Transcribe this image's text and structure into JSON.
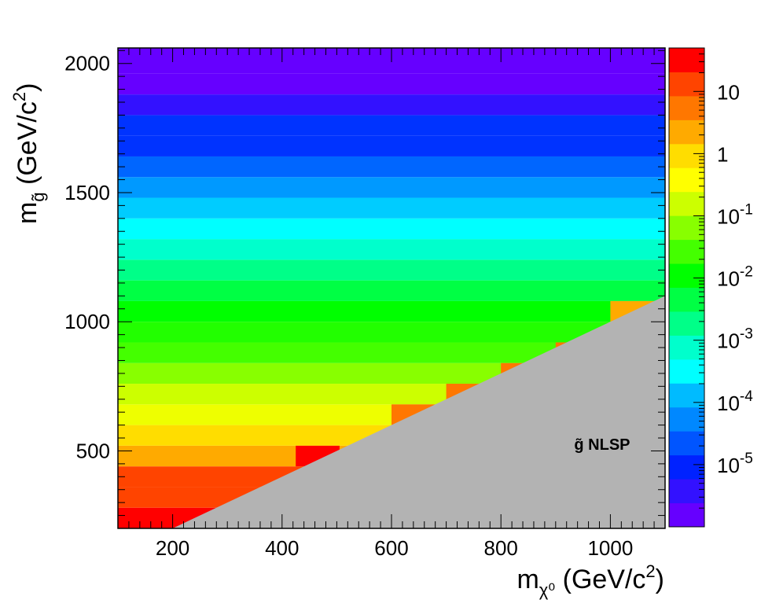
{
  "chart_data": {
    "type": "heatmap",
    "title": "",
    "x_axis": {
      "label_main": "m",
      "label_sub": "χ⁰",
      "label_unit": " (GeV/c",
      "label_exp": "2",
      "label_close": ")",
      "range": [
        100,
        1100
      ],
      "ticks": [
        200,
        400,
        600,
        800,
        1000
      ],
      "tick_labels": [
        "200",
        "400",
        "600",
        "800",
        "1000"
      ]
    },
    "y_axis": {
      "label_main": "m",
      "label_sub": "g̃",
      "label_unit": " (GeV/c",
      "label_exp": "2",
      "label_close": ")",
      "range": [
        200,
        2060
      ],
      "ticks": [
        500,
        1000,
        1500,
        2000
      ],
      "tick_labels": [
        "500",
        "1000",
        "1500",
        "2000"
      ]
    },
    "z_axis": {
      "scale": "log",
      "range": [
        1e-06,
        50
      ],
      "ticks": [
        {
          "base": "10",
          "exp": "-5"
        },
        {
          "base": "10",
          "exp": "-4"
        },
        {
          "base": "10",
          "exp": "-3"
        },
        {
          "base": "10",
          "exp": "-2"
        },
        {
          "base": "10",
          "exp": "-1"
        },
        {
          "base": "1",
          "exp": ""
        },
        {
          "base": "10",
          "exp": ""
        }
      ],
      "tick_values": [
        1e-05,
        0.0001,
        0.001,
        0.01,
        0.1,
        1,
        10
      ]
    },
    "palette": [
      "#6600ff",
      "#3311ff",
      "#0022ff",
      "#0055ff",
      "#0088ff",
      "#00bbff",
      "#00ffff",
      "#00ffcc",
      "#00ff88",
      "#00ff44",
      "#00ff00",
      "#44ff00",
      "#88ff00",
      "#ccff00",
      "#ffff00",
      "#ffdd00",
      "#ffaa00",
      "#ff7700",
      "#ff4400",
      "#ff0000"
    ],
    "gluino_bands": [
      {
        "m_low": 200,
        "m_high": 280,
        "color": "#ff0000"
      },
      {
        "m_low": 280,
        "m_high": 360,
        "color": "#ff4400"
      },
      {
        "m_low": 360,
        "m_high": 440,
        "color": "#ff4400"
      },
      {
        "m_low": 440,
        "m_high": 520,
        "color": "#ffaa00"
      },
      {
        "m_low": 520,
        "m_high": 600,
        "color": "#ffdd00"
      },
      {
        "m_low": 600,
        "m_high": 680,
        "color": "#eeff00"
      },
      {
        "m_low": 680,
        "m_high": 760,
        "color": "#ccff00"
      },
      {
        "m_low": 760,
        "m_high": 840,
        "color": "#88ff00"
      },
      {
        "m_low": 840,
        "m_high": 920,
        "color": "#44ff00"
      },
      {
        "m_low": 920,
        "m_high": 1000,
        "color": "#22ff00"
      },
      {
        "m_low": 1000,
        "m_high": 1080,
        "color": "#00ff00"
      },
      {
        "m_low": 1080,
        "m_high": 1160,
        "color": "#00ff44"
      },
      {
        "m_low": 1160,
        "m_high": 1240,
        "color": "#00ff88"
      },
      {
        "m_low": 1240,
        "m_high": 1320,
        "color": "#00ffcc"
      },
      {
        "m_low": 1320,
        "m_high": 1400,
        "color": "#00ffff"
      },
      {
        "m_low": 1400,
        "m_high": 1480,
        "color": "#00ccff"
      },
      {
        "m_low": 1480,
        "m_high": 1560,
        "color": "#0099ff"
      },
      {
        "m_low": 1560,
        "m_high": 1640,
        "color": "#0066ff"
      },
      {
        "m_low": 1640,
        "m_high": 1720,
        "color": "#0033ff"
      },
      {
        "m_low": 1720,
        "m_high": 1800,
        "color": "#0033ff"
      },
      {
        "m_low": 1800,
        "m_high": 1880,
        "color": "#3311ff"
      },
      {
        "m_low": 1880,
        "m_high": 1960,
        "color": "#6600ff"
      },
      {
        "m_low": 1960,
        "m_high": 2060,
        "color": "#6600ff"
      }
    ],
    "edge_cells": [
      {
        "x1": 425,
        "x2": 505,
        "y1": 440,
        "y2": 520,
        "color": "#ff0000"
      },
      {
        "x1": 600,
        "x2": 700,
        "y1": 600,
        "y2": 680,
        "color": "#ff7700"
      },
      {
        "x1": 700,
        "x2": 800,
        "y1": 680,
        "y2": 760,
        "color": "#ff7700"
      },
      {
        "x1": 800,
        "x2": 900,
        "y1": 760,
        "y2": 840,
        "color": "#ff7700"
      },
      {
        "x1": 900,
        "x2": 1000,
        "y1": 840,
        "y2": 920,
        "color": "#ff7700"
      },
      {
        "x1": 1000,
        "x2": 1100,
        "y1": 1000,
        "y2": 1080,
        "color": "#ffaa00"
      }
    ],
    "excluded_region": {
      "vertices": [
        [
          200,
          200
        ],
        [
          1100,
          1100
        ],
        [
          1100,
          200
        ]
      ],
      "color": "#b3b3b3",
      "label": "g̃ NLSP",
      "label_pos": [
        985,
        505
      ]
    },
    "grid": false,
    "legend": "colorbar-right"
  }
}
